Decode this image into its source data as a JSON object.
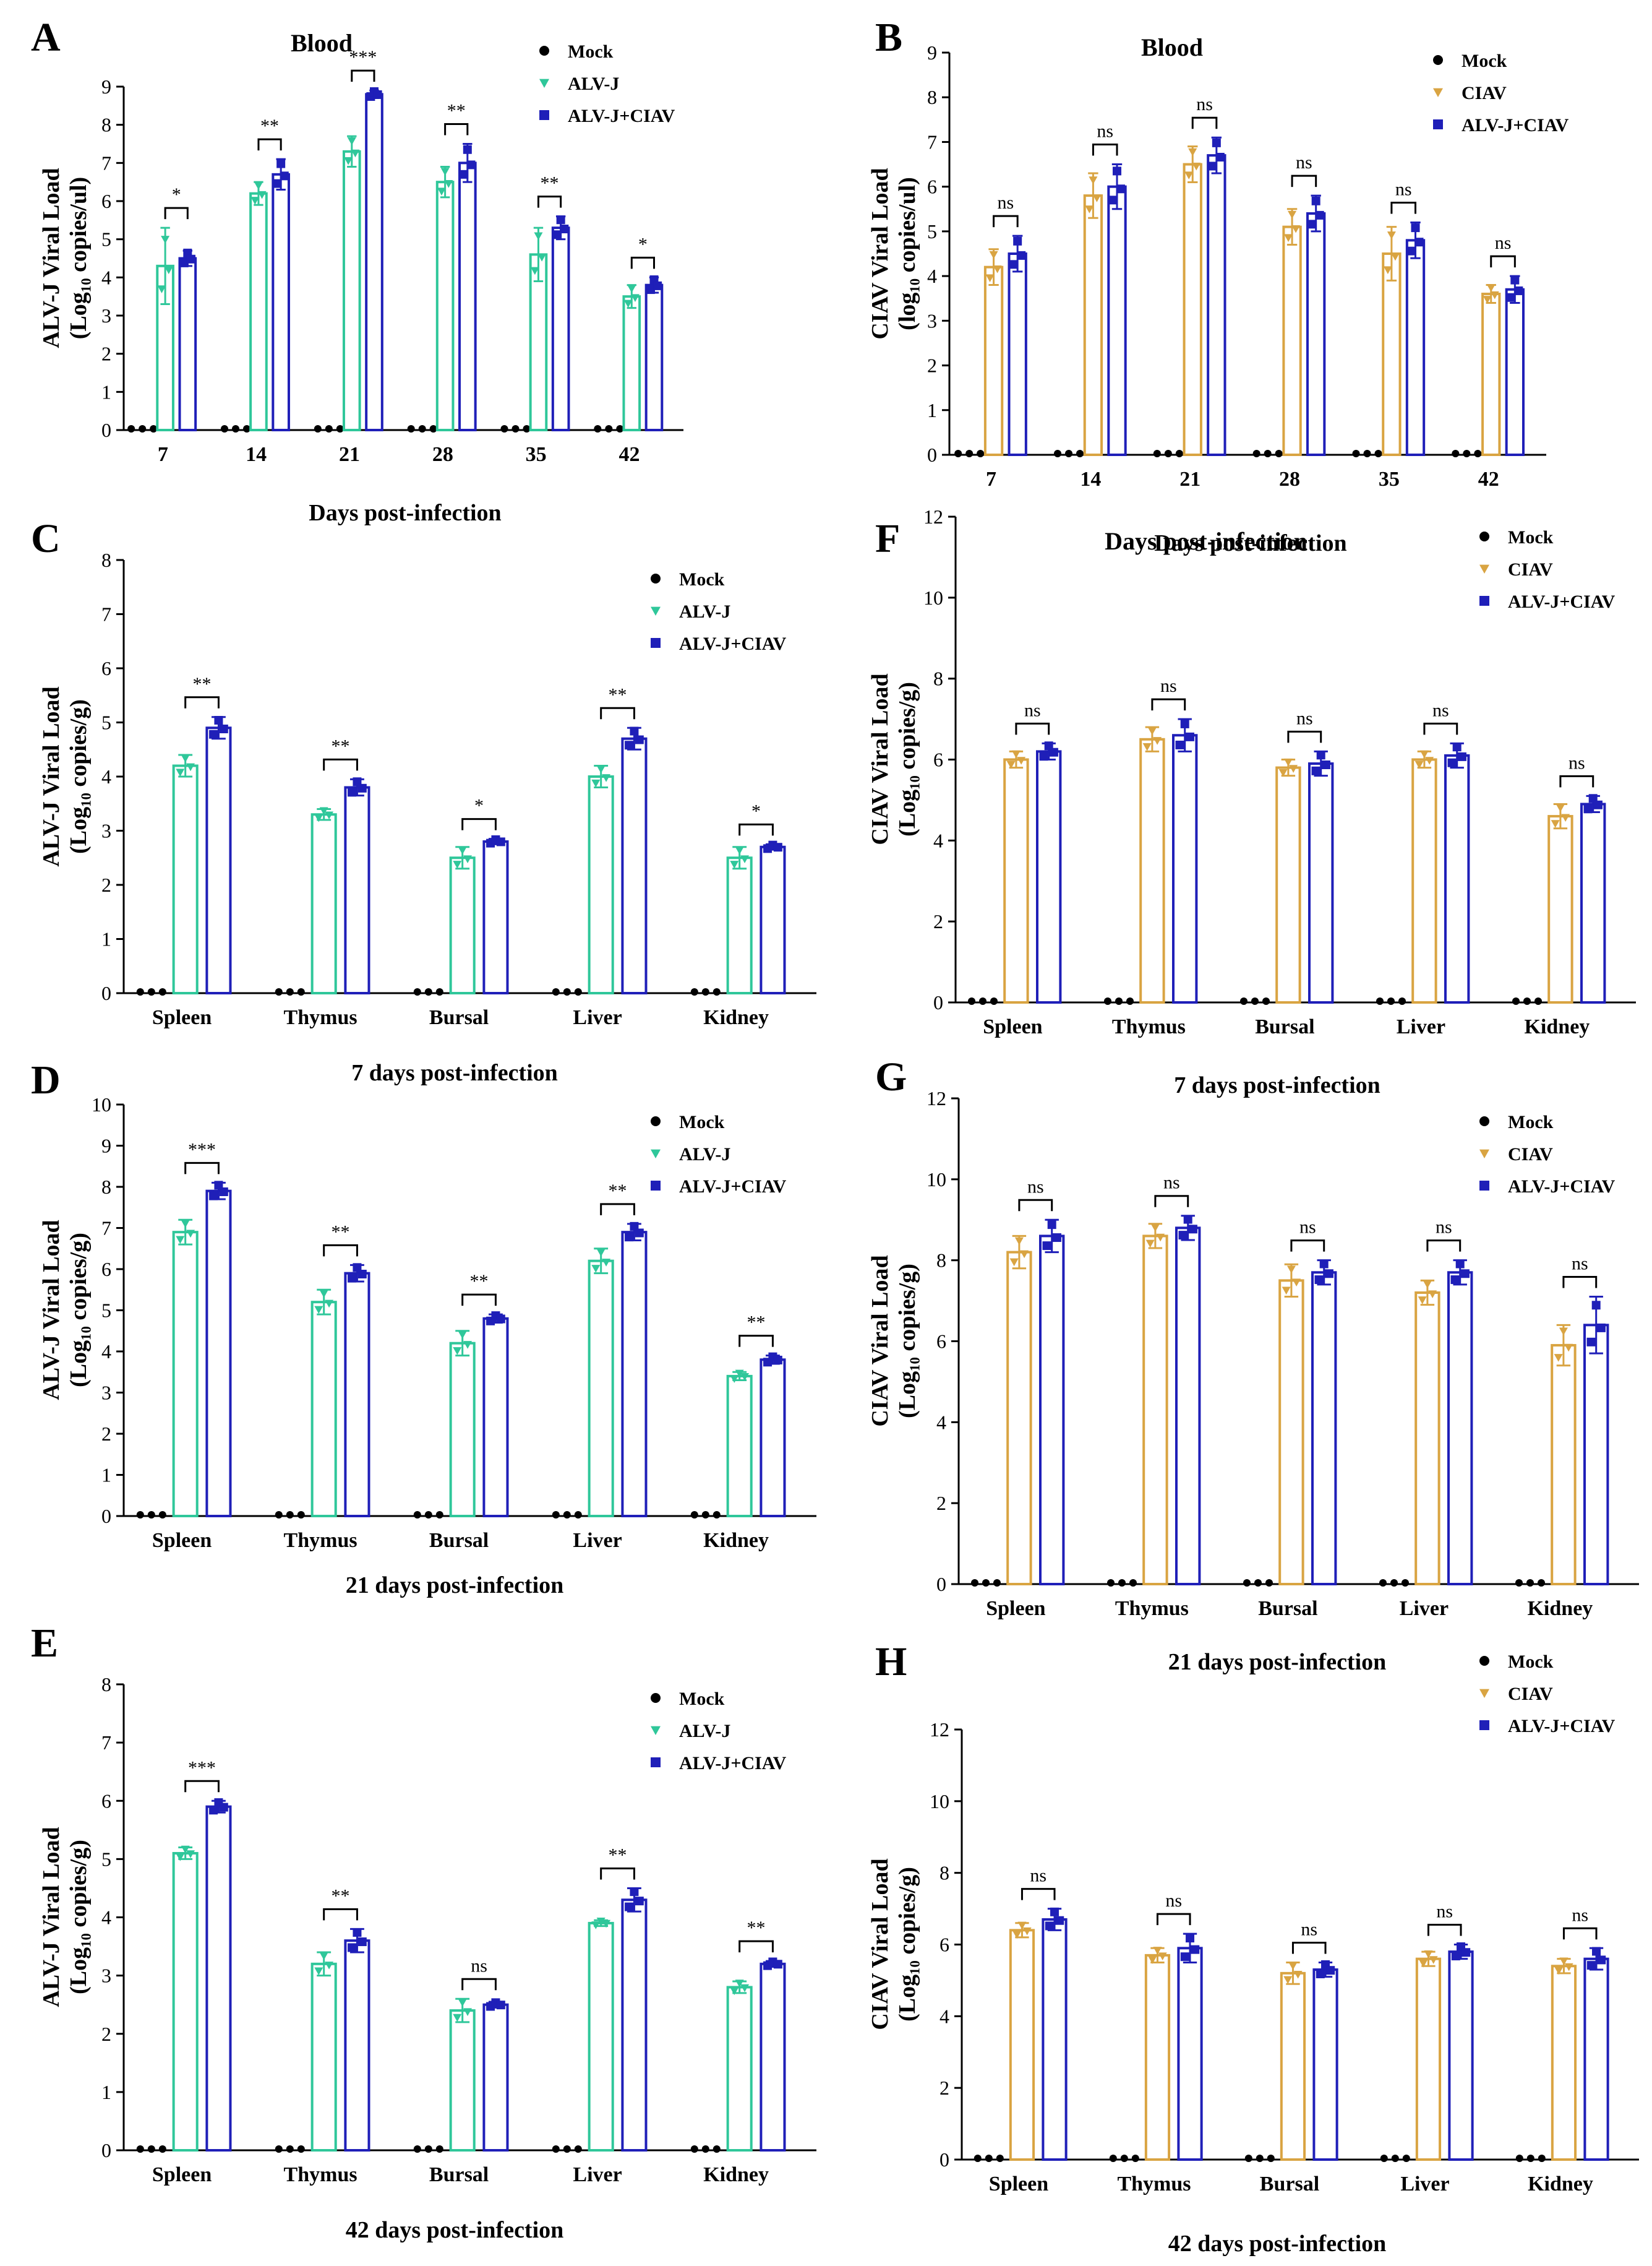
{
  "colors": {
    "mock": "#000000",
    "alvj": "#2fc79a",
    "ciav": "#d9a442",
    "coinf": "#1f1fb8"
  },
  "chart_data": [
    {
      "id": "A",
      "type": "bar",
      "panel_label": "A",
      "title": "Blood",
      "ylabel_lines": [
        "ALV-J Viral Load",
        "(Log₁₀ copies/ul)"
      ],
      "xlabel": "Days post-infection",
      "categories": [
        "7",
        "14",
        "21",
        "28",
        "35",
        "42"
      ],
      "ylim": [
        0,
        9
      ],
      "yticks": [
        "0",
        "1",
        "2",
        "3",
        "4",
        "5",
        "6",
        "7",
        "8",
        "9"
      ],
      "series": [
        {
          "name": "Mock",
          "key": "mock",
          "values": [
            0,
            0,
            0,
            0,
            0,
            0
          ],
          "errors": [
            0,
            0,
            0,
            0,
            0,
            0
          ]
        },
        {
          "name": "ALV-J",
          "key": "alvj",
          "values": [
            4.3,
            6.2,
            7.3,
            6.5,
            4.6,
            3.5
          ],
          "errors": [
            1.0,
            0.3,
            0.4,
            0.4,
            0.7,
            0.3
          ]
        },
        {
          "name": "ALV-J+CIAV",
          "key": "coinf",
          "values": [
            4.5,
            6.7,
            8.8,
            7.0,
            5.3,
            3.8
          ],
          "errors": [
            0.2,
            0.4,
            0.1,
            0.5,
            0.3,
            0.2
          ]
        }
      ],
      "significance": [
        "*",
        "**",
        "***",
        "**",
        "**",
        "*"
      ]
    },
    {
      "id": "B",
      "type": "bar",
      "panel_label": "B",
      "title": "Blood",
      "ylabel_lines": [
        "CIAV Viral Load",
        "(log₁₀ copies/ul)"
      ],
      "xlabel": "Days post-infection",
      "categories": [
        "7",
        "14",
        "21",
        "28",
        "35",
        "42"
      ],
      "ylim": [
        0,
        9
      ],
      "yticks": [
        "0",
        "1",
        "2",
        "3",
        "4",
        "5",
        "6",
        "7",
        "8",
        "9"
      ],
      "series": [
        {
          "name": "Mock",
          "key": "mock",
          "values": [
            0,
            0,
            0,
            0,
            0,
            0
          ],
          "errors": [
            0,
            0,
            0,
            0,
            0,
            0
          ]
        },
        {
          "name": "CIAV",
          "key": "ciav",
          "values": [
            4.2,
            5.8,
            6.5,
            5.1,
            4.5,
            3.6
          ],
          "errors": [
            0.4,
            0.5,
            0.4,
            0.4,
            0.6,
            0.2
          ]
        },
        {
          "name": "ALV-J+CIAV",
          "key": "coinf",
          "values": [
            4.5,
            6.0,
            6.7,
            5.4,
            4.8,
            3.7
          ],
          "errors": [
            0.4,
            0.5,
            0.4,
            0.4,
            0.4,
            0.3
          ]
        }
      ],
      "significance": [
        "ns",
        "ns",
        "ns",
        "ns",
        "ns",
        "ns"
      ]
    },
    {
      "id": "C",
      "type": "bar",
      "panel_label": "C",
      "title": "",
      "ylabel_lines": [
        "ALV-J Viral Load",
        "(Log₁₀ copies/g)"
      ],
      "xlabel": "7 days post-infection",
      "categories": [
        "Spleen",
        "Thymus",
        "Bursal",
        "Liver",
        "Kidney"
      ],
      "ylim": [
        0,
        8
      ],
      "yticks": [
        "0",
        "1",
        "2",
        "3",
        "4",
        "5",
        "6",
        "7",
        "8"
      ],
      "series": [
        {
          "name": "Mock",
          "key": "mock",
          "values": [
            0,
            0,
            0,
            0,
            0
          ],
          "errors": [
            0,
            0,
            0,
            0,
            0
          ]
        },
        {
          "name": "ALV-J",
          "key": "alvj",
          "values": [
            4.2,
            3.3,
            2.5,
            4.0,
            2.5
          ],
          "errors": [
            0.2,
            0.1,
            0.2,
            0.2,
            0.2
          ]
        },
        {
          "name": "ALV-J+CIAV",
          "key": "coinf",
          "values": [
            4.9,
            3.8,
            2.8,
            4.7,
            2.7
          ],
          "errors": [
            0.2,
            0.15,
            0.05,
            0.2,
            0.05
          ]
        }
      ],
      "significance": [
        "**",
        "**",
        "*",
        "**",
        "*"
      ]
    },
    {
      "id": "F",
      "type": "bar",
      "panel_label": "F",
      "title": "Days post-infection",
      "ylabel_lines": [
        "CIAV Viral  Load",
        "(Log₁₀ copies/g)"
      ],
      "xlabel": "7 days post-infection",
      "categories": [
        "Spleen",
        "Thymus",
        "Bursal",
        "Liver",
        "Kidney"
      ],
      "ylim": [
        0,
        12
      ],
      "yticks": [
        "0",
        "2",
        "4",
        "6",
        "8",
        "10",
        "12"
      ],
      "series": [
        {
          "name": "Mock",
          "key": "mock",
          "values": [
            0,
            0,
            0,
            0,
            0
          ],
          "errors": [
            0,
            0,
            0,
            0,
            0
          ]
        },
        {
          "name": "CIAV",
          "key": "ciav",
          "values": [
            6.0,
            6.5,
            5.8,
            6.0,
            4.6
          ],
          "errors": [
            0.2,
            0.3,
            0.2,
            0.2,
            0.3
          ]
        },
        {
          "name": "ALV-J+CIAV",
          "key": "coinf",
          "values": [
            6.2,
            6.6,
            5.9,
            6.1,
            4.9
          ],
          "errors": [
            0.2,
            0.4,
            0.3,
            0.3,
            0.2
          ]
        }
      ],
      "significance": [
        "ns",
        "ns",
        "ns",
        "ns",
        "ns"
      ]
    },
    {
      "id": "D",
      "type": "bar",
      "panel_label": "D",
      "title": "",
      "ylabel_lines": [
        "ALV-J Viral Load",
        "(Log₁₀ copies/g)"
      ],
      "xlabel": "21 days post-infection",
      "categories": [
        "Spleen",
        "Thymus",
        "Bursal",
        "Liver",
        "Kidney"
      ],
      "ylim": [
        0,
        10
      ],
      "yticks": [
        "0",
        "1",
        "2",
        "3",
        "4",
        "5",
        "6",
        "7",
        "8",
        "9",
        "10"
      ],
      "series": [
        {
          "name": "Mock",
          "key": "mock",
          "values": [
            0,
            0,
            0,
            0,
            0
          ],
          "errors": [
            0,
            0,
            0,
            0,
            0
          ]
        },
        {
          "name": "ALV-J",
          "key": "alvj",
          "values": [
            6.9,
            5.2,
            4.2,
            6.2,
            3.4
          ],
          "errors": [
            0.3,
            0.3,
            0.3,
            0.3,
            0.1
          ]
        },
        {
          "name": "ALV-J+CIAV",
          "key": "coinf",
          "values": [
            7.9,
            5.9,
            4.8,
            6.9,
            3.8
          ],
          "errors": [
            0.2,
            0.2,
            0.1,
            0.2,
            0.1
          ]
        }
      ],
      "significance": [
        "***",
        "**",
        "**",
        "**",
        "**"
      ]
    },
    {
      "id": "G",
      "type": "bar",
      "panel_label": "G",
      "title": "",
      "ylabel_lines": [
        "CIAV Viral  Load",
        "(Log₁₀ copies/g)"
      ],
      "xlabel": "21 days post-infection",
      "categories": [
        "Spleen",
        "Thymus",
        "Bursal",
        "Liver",
        "Kidney"
      ],
      "ylim": [
        0,
        12
      ],
      "yticks": [
        "0",
        "2",
        "4",
        "6",
        "8",
        "10",
        "12"
      ],
      "series": [
        {
          "name": "Mock",
          "key": "mock",
          "values": [
            0,
            0,
            0,
            0,
            0
          ],
          "errors": [
            0,
            0,
            0,
            0,
            0
          ]
        },
        {
          "name": "CIAV",
          "key": "ciav",
          "values": [
            8.2,
            8.6,
            7.5,
            7.2,
            5.9
          ],
          "errors": [
            0.4,
            0.3,
            0.4,
            0.3,
            0.5
          ]
        },
        {
          "name": "ALV-J+CIAV",
          "key": "coinf",
          "values": [
            8.6,
            8.8,
            7.7,
            7.7,
            6.4
          ],
          "errors": [
            0.4,
            0.3,
            0.3,
            0.3,
            0.7
          ]
        }
      ],
      "significance": [
        "ns",
        "ns",
        "ns",
        "ns",
        "ns"
      ]
    },
    {
      "id": "E",
      "type": "bar",
      "panel_label": "E",
      "title": "",
      "ylabel_lines": [
        "ALV-J Viral Load",
        "(Log₁₀ copies/g)"
      ],
      "xlabel": "42 days post-infection",
      "categories": [
        "Spleen",
        "Thymus",
        "Bursal",
        "Liver",
        "Kidney"
      ],
      "ylim": [
        0,
        8
      ],
      "yticks": [
        "0",
        "1",
        "2",
        "3",
        "4",
        "5",
        "6",
        "7",
        "8"
      ],
      "series": [
        {
          "name": "Mock",
          "key": "mock",
          "values": [
            0,
            0,
            0,
            0,
            0
          ],
          "errors": [
            0,
            0,
            0,
            0,
            0
          ]
        },
        {
          "name": "ALV-J",
          "key": "alvj",
          "values": [
            5.1,
            3.2,
            2.4,
            3.9,
            2.8
          ],
          "errors": [
            0.1,
            0.2,
            0.2,
            0.05,
            0.1
          ]
        },
        {
          "name": "ALV-J+CIAV",
          "key": "coinf",
          "values": [
            5.9,
            3.6,
            2.5,
            4.3,
            3.2
          ],
          "errors": [
            0.1,
            0.2,
            0.05,
            0.2,
            0.05
          ]
        }
      ],
      "significance": [
        "***",
        "**",
        "ns",
        "**",
        "**"
      ]
    },
    {
      "id": "H",
      "type": "bar",
      "panel_label": "H",
      "title": "",
      "ylabel_lines": [
        "CIAV Viral  Load",
        "(Log₁₀ copies/g)"
      ],
      "xlabel": "42 days post-infection",
      "categories": [
        "Spleen",
        "Thymus",
        "Bursal",
        "Liver",
        "Kidney"
      ],
      "ylim": [
        0,
        12
      ],
      "yticks": [
        "0",
        "2",
        "4",
        "6",
        "8",
        "10",
        "12"
      ],
      "series": [
        {
          "name": "Mock",
          "key": "mock",
          "values": [
            0,
            0,
            0,
            0,
            0
          ],
          "errors": [
            0,
            0,
            0,
            0,
            0
          ]
        },
        {
          "name": "CIAV",
          "key": "ciav",
          "values": [
            6.4,
            5.7,
            5.2,
            5.6,
            5.4
          ],
          "errors": [
            0.2,
            0.2,
            0.3,
            0.2,
            0.2
          ]
        },
        {
          "name": "ALV-J+CIAV",
          "key": "coinf",
          "values": [
            6.7,
            5.9,
            5.3,
            5.8,
            5.6
          ],
          "errors": [
            0.3,
            0.4,
            0.2,
            0.2,
            0.3
          ]
        }
      ],
      "significance": [
        "ns",
        "ns",
        "ns",
        "ns",
        "ns"
      ]
    }
  ]
}
